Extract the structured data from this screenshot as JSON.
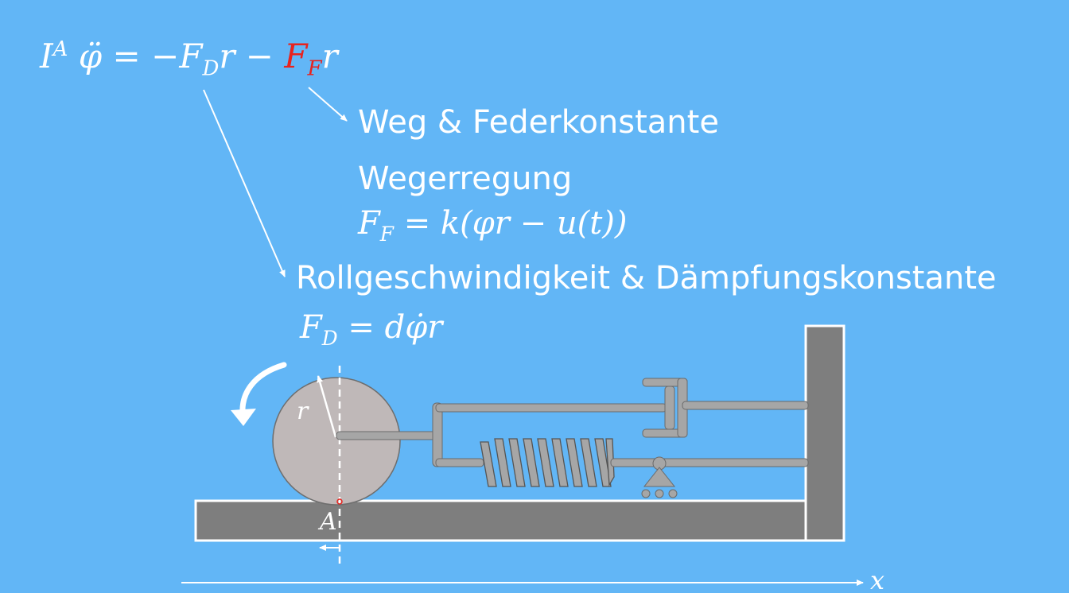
{
  "equation": {
    "lhs": "I",
    "lhs_sup": "A",
    "phi_ddot": "φ̈",
    "eq": "=",
    "minus1": "−",
    "fd": "F",
    "fd_sub": "D",
    "r1": "r",
    "minus2": "−",
    "ff": "F",
    "ff_sub": "F",
    "r2": "r"
  },
  "labels": {
    "spring_arrow_text": "Weg & Federkonstante",
    "excitation_text": "Wegerregung",
    "damper_arrow_text": "Rollgeschwindigkeit & Dämpfungskonstante"
  },
  "formula_ff": {
    "lhs": "F",
    "sub": "F",
    "rhs": "= k(φr − u(t))"
  },
  "formula_fd": {
    "lhs": "F",
    "sub": "D",
    "rhs": "= dφ̇r"
  },
  "diagram": {
    "radius_label": "r",
    "contact_label": "A",
    "axis_label": "x"
  },
  "colors": {
    "background": "#62b6f6",
    "highlight": "#e8231e",
    "ground": "#7e7e7e",
    "wheel": "#bfb8b8",
    "parts": "#a6a6a6",
    "outline": "#ffffff"
  }
}
